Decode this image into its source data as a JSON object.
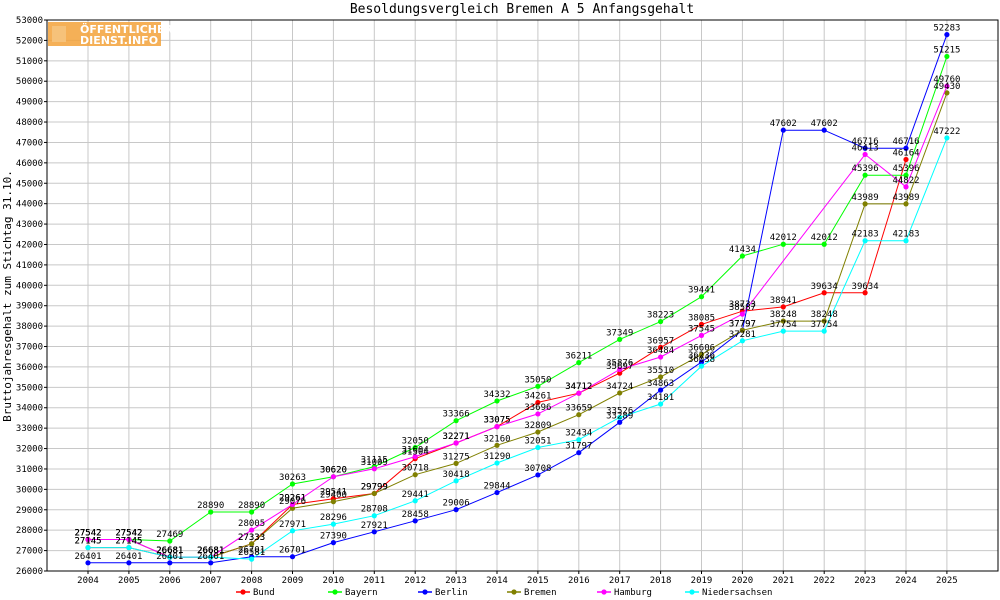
{
  "logo": {
    "line1": "ÖFFENTLICHER",
    "line2": "DIENST.INFO"
  },
  "chart_data": {
    "type": "line",
    "title": "Besoldungsvergleich Bremen A 5 Anfangsgehalt",
    "xlabel": "",
    "ylabel": "Bruttojahresgehalt zum Stichtag 31.10.",
    "categories": [
      "2004",
      "2005",
      "2006",
      "2007",
      "2008",
      "2009",
      "2010",
      "2011",
      "2012",
      "2013",
      "2014",
      "2015",
      "2016",
      "2017",
      "2018",
      "2019",
      "2020",
      "2021",
      "2022",
      "2023",
      "2024",
      "2025"
    ],
    "ylim": [
      26000,
      53000
    ],
    "yticks": [
      26000,
      27000,
      28000,
      29000,
      30000,
      31000,
      32000,
      33000,
      34000,
      35000,
      36000,
      37000,
      38000,
      39000,
      40000,
      41000,
      42000,
      43000,
      44000,
      45000,
      46000,
      47000,
      48000,
      49000,
      50000,
      51000,
      52000,
      53000
    ],
    "grid": true,
    "legend_position": "bottom",
    "series": [
      {
        "name": "Bund",
        "color": "#ff0000",
        "values": [
          27145,
          27145,
          26681,
          26681,
          27333,
          29261,
          29541,
          29799,
          31504,
          32271,
          33075,
          34261,
          34712,
          35697,
          36957,
          38085,
          38733,
          38941,
          39634,
          39634,
          46164,
          null
        ]
      },
      {
        "name": "Bayern",
        "color": "#00ff00",
        "values": [
          27542,
          27542,
          27469,
          28890,
          28890,
          30263,
          30620,
          31115,
          32050,
          33366,
          34332,
          35050,
          36211,
          37349,
          38223,
          39441,
          41434,
          42012,
          42012,
          45396,
          45396,
          51215
        ]
      },
      {
        "name": "Berlin",
        "color": "#0000ff",
        "values": [
          26401,
          26401,
          26401,
          26401,
          26701,
          26701,
          27390,
          27921,
          28458,
          29006,
          29844,
          30708,
          31797,
          33289,
          34863,
          36236,
          37797,
          47602,
          47602,
          46716,
          46716,
          52283
        ]
      },
      {
        "name": "Bremen",
        "color": "#808000",
        "values": [
          27542,
          27542,
          26681,
          26681,
          27333,
          29076,
          29400,
          29799,
          30718,
          31275,
          32160,
          32809,
          33659,
          34724,
          35510,
          36606,
          37797,
          38248,
          38248,
          43989,
          43989,
          49430
        ]
      },
      {
        "name": "Hamburg",
        "color": "#ff00ff",
        "values": [
          27542,
          27542,
          26681,
          26681,
          28005,
          29261,
          30620,
          31009,
          31604,
          32271,
          33075,
          33696,
          34712,
          35876,
          36484,
          37545,
          38587,
          null,
          null,
          46413,
          44822,
          49760
        ]
      },
      {
        "name": "Niedersachsen",
        "color": "#00ffff",
        "values": [
          27145,
          27145,
          26681,
          26681,
          26581,
          27971,
          28296,
          28708,
          29441,
          30418,
          31290,
          32051,
          32434,
          33526,
          34181,
          36038,
          37281,
          37754,
          37754,
          42183,
          42183,
          47222
        ]
      }
    ]
  }
}
